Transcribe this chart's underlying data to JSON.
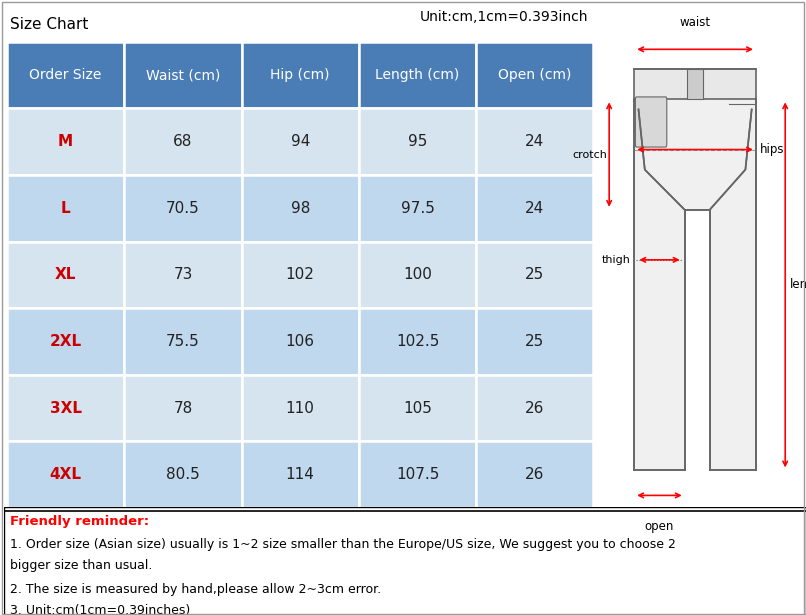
{
  "title_left": "Size Chart",
  "title_right": "Unit:cm,1cm=0.393inch",
  "headers": [
    "Order Size",
    "Waist (cm)",
    "Hip (cm)",
    "Length (cm)",
    "Open (cm)"
  ],
  "rows": [
    [
      "M",
      "68",
      "94",
      "95",
      "24"
    ],
    [
      "L",
      "70.5",
      "98",
      "97.5",
      "24"
    ],
    [
      "XL",
      "73",
      "102",
      "100",
      "25"
    ],
    [
      "2XL",
      "75.5",
      "106",
      "102.5",
      "25"
    ],
    [
      "3XL",
      "78",
      "110",
      "105",
      "26"
    ],
    [
      "4XL",
      "80.5",
      "114",
      "107.5",
      "26"
    ]
  ],
  "header_bg": "#4a7cb5",
  "header_text_color": "#ffffff",
  "row_bg_light": "#d6e4f0",
  "row_bg_dark": "#c0d8ee",
  "size_color": "#cc0000",
  "data_color": "#222222",
  "title_color": "#000000",
  "friendly_reminder_label": "Friendly reminder:",
  "friendly_reminder_lines": [
    "1. Order size (Asian size) usually is 1~2 size smaller than the Europe/US size, We suggest you to choose 2",
    "bigger size than usual.",
    "2. The size is measured by hand,please allow 2~3cm error.",
    "3. Unit:cm(1cm=0.39inches)"
  ],
  "bg_color": "#ffffff"
}
